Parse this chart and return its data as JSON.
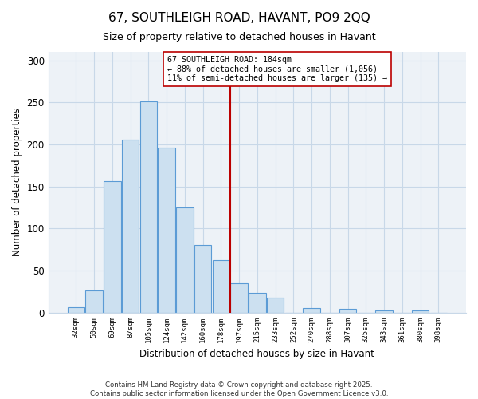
{
  "title": "67, SOUTHLEIGH ROAD, HAVANT, PO9 2QQ",
  "subtitle": "Size of property relative to detached houses in Havant",
  "xlabel": "Distribution of detached houses by size in Havant",
  "ylabel": "Number of detached properties",
  "bar_labels": [
    "32sqm",
    "50sqm",
    "69sqm",
    "87sqm",
    "105sqm",
    "124sqm",
    "142sqm",
    "160sqm",
    "178sqm",
    "197sqm",
    "215sqm",
    "233sqm",
    "252sqm",
    "270sqm",
    "288sqm",
    "307sqm",
    "325sqm",
    "343sqm",
    "361sqm",
    "380sqm",
    "398sqm"
  ],
  "bar_heights": [
    6,
    26,
    156,
    206,
    251,
    196,
    125,
    80,
    62,
    35,
    23,
    18,
    0,
    5,
    0,
    4,
    0,
    2,
    0,
    2,
    0
  ],
  "bar_color": "#cce0f0",
  "bar_edge_color": "#5b9bd5",
  "vline_x": 8.5,
  "vline_color": "#bb0000",
  "annotation_text": "67 SOUTHLEIGH ROAD: 184sqm\n← 88% of detached houses are smaller (1,056)\n11% of semi-detached houses are larger (135) →",
  "annotation_box_facecolor": "white",
  "annotation_box_edgecolor": "#bb0000",
  "ylim": [
    0,
    310
  ],
  "yticks": [
    0,
    50,
    100,
    150,
    200,
    250,
    300
  ],
  "bg_color": "#edf2f7",
  "grid_color": "#c8d8e8",
  "footer_line1": "Contains HM Land Registry data © Crown copyright and database right 2025.",
  "footer_line2": "Contains public sector information licensed under the Open Government Licence v3.0."
}
